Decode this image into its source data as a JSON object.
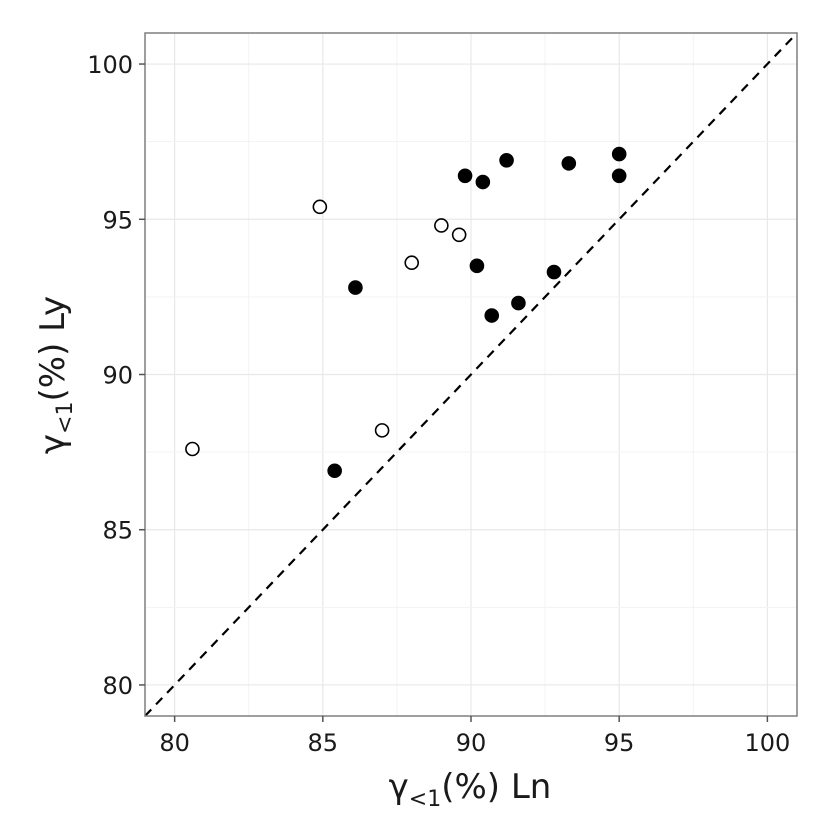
{
  "chart_data": {
    "type": "scatter",
    "xlabel": {
      "prefix": "γ",
      "subscript": "<1",
      "suffix": "(%)  Ln"
    },
    "ylabel": {
      "prefix": "γ",
      "subscript": "<1",
      "suffix": "(%)  Ly"
    },
    "xlim": [
      79,
      101
    ],
    "ylim": [
      79,
      101
    ],
    "x_ticks": [
      80,
      85,
      90,
      95,
      100
    ],
    "y_ticks": [
      80,
      85,
      90,
      95,
      100
    ],
    "grid": true,
    "reference_line": {
      "type": "identity",
      "style": "dashed",
      "color": "#000000"
    },
    "series": [
      {
        "marker": "filled-circle",
        "color": "#000000",
        "points": [
          [
            85.4,
            86.9
          ],
          [
            86.1,
            92.8
          ],
          [
            89.8,
            96.4
          ],
          [
            90.2,
            93.5
          ],
          [
            90.4,
            96.2
          ],
          [
            90.7,
            91.9
          ],
          [
            91.2,
            96.9
          ],
          [
            91.6,
            92.3
          ],
          [
            92.8,
            93.3
          ],
          [
            93.3,
            96.8
          ],
          [
            95.0,
            97.1
          ],
          [
            95.0,
            96.4
          ]
        ]
      },
      {
        "marker": "open-circle",
        "color": "#000000",
        "points": [
          [
            80.6,
            87.6
          ],
          [
            84.9,
            95.4
          ],
          [
            87.0,
            88.2
          ],
          [
            88.0,
            93.6
          ],
          [
            89.0,
            94.8
          ],
          [
            89.6,
            94.5
          ]
        ]
      }
    ]
  }
}
